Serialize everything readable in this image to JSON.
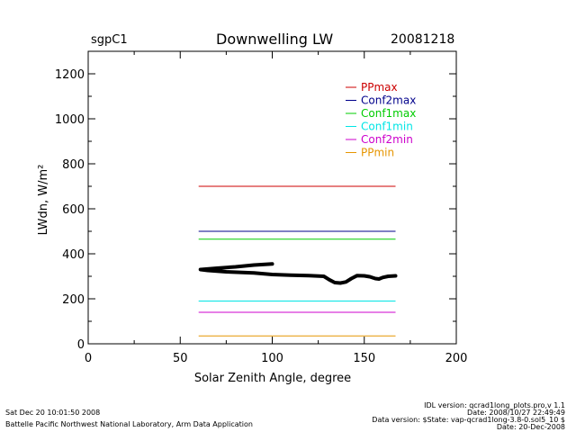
{
  "header": {
    "site": "sgpC1",
    "title": "Downwelling LW",
    "date": "20081218"
  },
  "footer": {
    "left_lines": [
      "Sat Dec 20 10:01:50 2008",
      "Battelle Pacific Northwest National Laboratory, Arm Data Application"
    ],
    "right_lines": [
      "IDL version: qcrad1long_plots.pro,v 1.1",
      "Date: 2008/10/27 22:49:49",
      "Data version: $State: vap-qcrad1long-3.8-0.sol5_10 $",
      "Date: 20-Dec-2008"
    ]
  },
  "chart_data": {
    "type": "line",
    "title": "Downwelling LW",
    "xlabel": "Solar Zenith Angle, degree",
    "ylabel": "LWdn, W/m²",
    "xlim": [
      0,
      200
    ],
    "ylim": [
      0,
      1300
    ],
    "xticks": [
      0,
      50,
      100,
      150,
      200
    ],
    "yticks": [
      0,
      200,
      400,
      600,
      800,
      1000,
      1200
    ],
    "grid": false,
    "legend_position": "top-right",
    "limit_lines": [
      {
        "name": "PPmax",
        "value": 700,
        "color": "#cc0000"
      },
      {
        "name": "Conf2max",
        "value": 500,
        "color": "#00008b"
      },
      {
        "name": "Conf1max",
        "value": 465,
        "color": "#00cc00"
      },
      {
        "name": "Conf1min",
        "value": 190,
        "color": "#00e5e5"
      },
      {
        "name": "Conf2min",
        "value": 140,
        "color": "#cc00cc"
      },
      {
        "name": "PPmin",
        "value": 35,
        "color": "#e69500"
      }
    ],
    "limit_x_range": [
      60,
      167
    ],
    "series": [
      {
        "color": "#000000",
        "points": [
          [
            100,
            355
          ],
          [
            90,
            350
          ],
          [
            80,
            342
          ],
          [
            70,
            336
          ],
          [
            61,
            330
          ],
          [
            65,
            326
          ],
          [
            75,
            320
          ],
          [
            90,
            315
          ],
          [
            100,
            308
          ],
          [
            110,
            305
          ],
          [
            120,
            303
          ],
          [
            128,
            300
          ],
          [
            131,
            285
          ],
          [
            134,
            272
          ],
          [
            137,
            270
          ],
          [
            140,
            275
          ],
          [
            143,
            290
          ],
          [
            146,
            303
          ],
          [
            150,
            302
          ],
          [
            153,
            298
          ],
          [
            156,
            290
          ],
          [
            158,
            288
          ],
          [
            160,
            295
          ],
          [
            163,
            300
          ],
          [
            167,
            302
          ]
        ]
      }
    ]
  }
}
